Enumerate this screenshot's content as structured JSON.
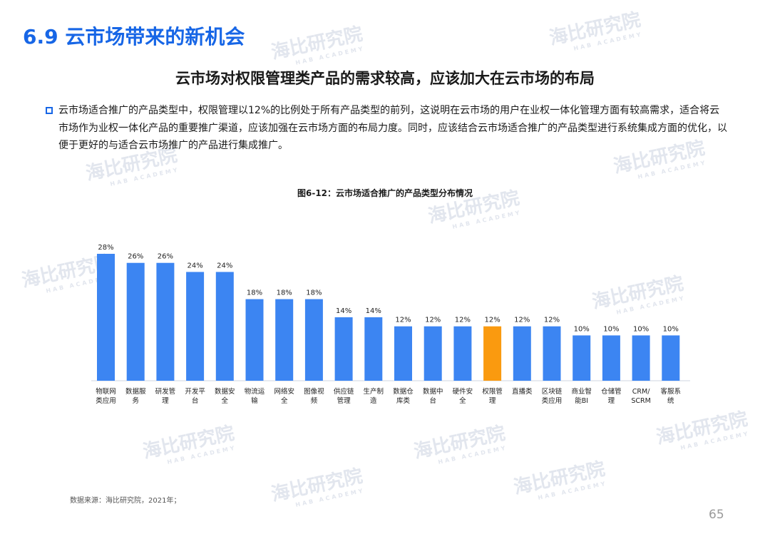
{
  "section_title": "6.9 云市场带来的新机会",
  "headline": "云市场对权限管理类产品的需求较高，应该加大在云市场的布局",
  "paragraph": "云市场适合推广的产品类型中，权限管理以12%的比例处于所有产品类型的前列，这说明在云市场的用户在业权一体化管理方面有较高需求，适合将云市场作为业权一体化产品的重要推广渠道，应该加强在云市场方面的布局力度。同时，应该结合云市场适合推广的产品类型进行系统集成方面的优化，以便于更好的与适合云市场推广的产品进行集成推广。",
  "watermark": {
    "text": "海比研究院",
    "sub": "HAB ACADEMY"
  },
  "chart_data": {
    "type": "bar",
    "title": "图6-12：云市场适合推广的产品类型分布情况",
    "categories": [
      [
        "物联网",
        "类应用"
      ],
      [
        "数据服",
        "务"
      ],
      [
        "研发管",
        "理"
      ],
      [
        "开发平",
        "台"
      ],
      [
        "数据安",
        "全"
      ],
      [
        "物流运",
        "输"
      ],
      [
        "网络安",
        "全"
      ],
      [
        "图像视",
        "频"
      ],
      [
        "供应链",
        "管理"
      ],
      [
        "生产制",
        "造"
      ],
      [
        "数据仓",
        "库类"
      ],
      [
        "数据中",
        "台"
      ],
      [
        "硬件安",
        "全"
      ],
      [
        "权限管",
        "理"
      ],
      [
        "直播类"
      ],
      [
        "区块链",
        "类应用"
      ],
      [
        "商业智",
        "能BI"
      ],
      [
        "仓储管",
        "理"
      ],
      [
        "CRM/",
        "SCRM"
      ],
      [
        "客服系",
        "统"
      ]
    ],
    "values": [
      28,
      26,
      26,
      24,
      24,
      18,
      18,
      18,
      14,
      14,
      12,
      12,
      12,
      12,
      12,
      12,
      10,
      10,
      10,
      10
    ],
    "value_labels": [
      "28%",
      "26%",
      "26%",
      "24%",
      "24%",
      "18%",
      "18%",
      "18%",
      "14%",
      "14%",
      "12%",
      "12%",
      "12%",
      "12%",
      "12%",
      "12%",
      "10%",
      "10%",
      "10%",
      "10%"
    ],
    "ylim": [
      0,
      28
    ],
    "highlight_index": 13,
    "colors": {
      "bar": "#3c85f2",
      "highlight": "#fa9a0f",
      "baseline": "#cfd6e0",
      "text": "#222222"
    },
    "xlabel": "",
    "ylabel": "",
    "grid": false,
    "legend": "none"
  },
  "source": "数据来源：海比研究院，2021年；",
  "page_number": "65"
}
